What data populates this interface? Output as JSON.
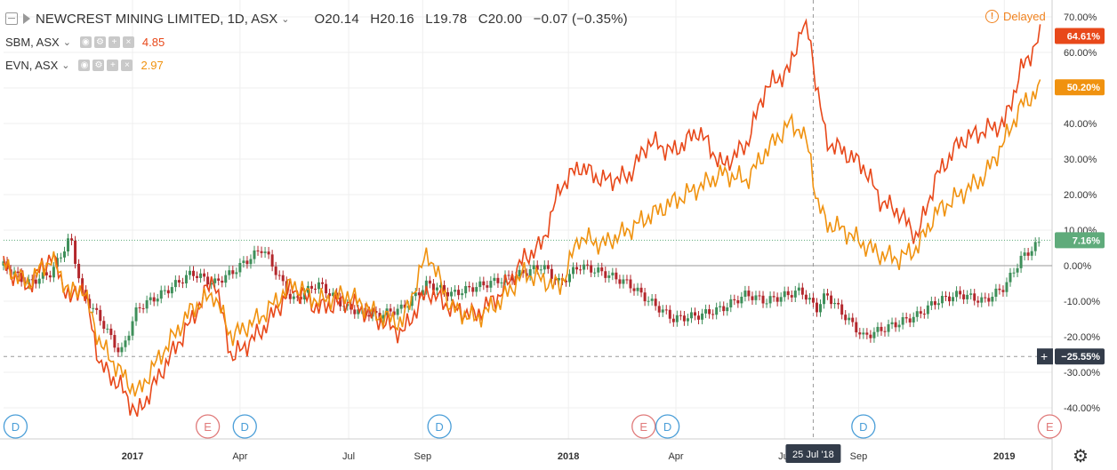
{
  "legend": {
    "main": {
      "title": "NEWCREST MINING LIMITED, 1D, ASX",
      "open": "O20.14",
      "high": "H20.16",
      "low": "L19.78",
      "close": "C20.00",
      "change": "−0.07 (−0.35%)"
    },
    "compare": [
      {
        "label": "SBM, ASX",
        "value": "4.85",
        "color": "#e8481a"
      },
      {
        "label": "EVN, ASX",
        "value": "2.97",
        "color": "#f0920f"
      }
    ]
  },
  "delayed_label": "Delayed",
  "crosshair_date": "25 Jul '18",
  "price_tags": {
    "sbm": "64.61%",
    "evn": "50.20%",
    "ncm": "7.16%",
    "cursor": "−25.55%"
  },
  "colors": {
    "sbm": "#e8481a",
    "evn": "#f0920f",
    "up": "#3e8f5a",
    "down": "#b3272c",
    "tag_main": "#5fab7b",
    "tag_cursor": "#333c4a"
  },
  "icons": [
    "collapse-icon",
    "flag-icon",
    "chevron-down-icon",
    "eye-icon",
    "gear-icon",
    "plus-icon",
    "close-icon",
    "warning-icon",
    "settings-gear-icon"
  ],
  "event_markers": [
    {
      "letter": "D",
      "type": "dividend"
    },
    {
      "letter": "E",
      "type": "earnings"
    },
    {
      "letter": "D",
      "type": "dividend"
    },
    {
      "letter": "D",
      "type": "dividend"
    },
    {
      "letter": "E",
      "type": "earnings"
    },
    {
      "letter": "D",
      "type": "dividend"
    },
    {
      "letter": "D",
      "type": "dividend"
    },
    {
      "letter": "E",
      "type": "earnings"
    }
  ],
  "chart_data": {
    "type": "line",
    "ylim": [
      -45,
      72
    ],
    "y_ticks": [
      "70.00%",
      "60.00%",
      "50.00%",
      "40.00%",
      "30.00%",
      "20.00%",
      "10.00%",
      "0.00%",
      "-10.00%",
      "-20.00%",
      "-30.00%",
      "-40.00%"
    ],
    "y_tick_values": [
      70,
      60,
      50,
      40,
      30,
      20,
      10,
      0,
      -10,
      -20,
      -30,
      -40
    ],
    "x_ticks": [
      "2017",
      "Apr",
      "Jul",
      "Sep",
      "2018",
      "Apr",
      "Jul",
      "Sep",
      "2019"
    ],
    "x_tick_dates": [
      "2017-01-01",
      "2017-04-01",
      "2017-07-01",
      "2017-09-01",
      "2018-01-01",
      "2018-04-01",
      "2018-07-01",
      "2018-09-01",
      "2019-01-01"
    ],
    "x_range": [
      "2016-09-15",
      "2019-02-10"
    ],
    "series": [
      {
        "name": "SBM, ASX",
        "x": [
          "2016-09-15",
          "2016-10-05",
          "2016-10-25",
          "2016-11-10",
          "2016-11-20",
          "2016-12-05",
          "2016-12-22",
          "2017-01-05",
          "2017-01-25",
          "2017-02-20",
          "2017-03-10",
          "2017-03-25",
          "2017-04-20",
          "2017-05-15",
          "2017-06-05",
          "2017-06-30",
          "2017-07-25",
          "2017-08-15",
          "2017-09-05",
          "2017-09-25",
          "2017-10-15",
          "2017-11-05",
          "2017-11-25",
          "2017-12-10",
          "2017-12-25",
          "2018-01-10",
          "2018-01-30",
          "2018-02-20",
          "2018-03-10",
          "2018-03-30",
          "2018-04-20",
          "2018-05-10",
          "2018-05-30",
          "2018-06-15",
          "2018-07-05",
          "2018-07-15",
          "2018-07-22",
          "2018-07-28",
          "2018-08-05",
          "2018-08-20",
          "2018-09-05",
          "2018-09-20",
          "2018-10-05",
          "2018-10-20",
          "2018-11-05",
          "2018-11-25",
          "2018-12-15",
          "2019-01-01",
          "2019-01-15",
          "2019-02-01"
        ],
        "values": [
          0,
          -6,
          3,
          -10,
          -5,
          -28,
          -34,
          -42,
          -30,
          -15,
          -3,
          -26,
          -18,
          -6,
          -12,
          -10,
          -15,
          -19,
          -7,
          -12,
          -14,
          -8,
          2,
          6,
          22,
          28,
          24,
          25,
          35,
          32,
          38,
          28,
          34,
          50,
          55,
          67,
          65,
          50,
          35,
          32,
          28,
          18,
          15,
          8,
          25,
          35,
          38,
          40,
          55,
          65
        ]
      },
      {
        "name": "EVN, ASX",
        "x": [
          "2016-09-15",
          "2016-10-05",
          "2016-10-25",
          "2016-11-10",
          "2016-11-20",
          "2016-12-05",
          "2016-12-22",
          "2017-01-05",
          "2017-01-25",
          "2017-02-20",
          "2017-03-10",
          "2017-03-25",
          "2017-04-20",
          "2017-05-15",
          "2017-06-05",
          "2017-06-30",
          "2017-07-25",
          "2017-08-15",
          "2017-09-05",
          "2017-09-25",
          "2017-10-15",
          "2017-11-05",
          "2017-11-25",
          "2017-12-10",
          "2017-12-25",
          "2018-01-10",
          "2018-01-30",
          "2018-02-20",
          "2018-03-10",
          "2018-03-30",
          "2018-04-20",
          "2018-05-10",
          "2018-05-30",
          "2018-06-15",
          "2018-07-05",
          "2018-07-15",
          "2018-07-22",
          "2018-07-28",
          "2018-08-05",
          "2018-08-20",
          "2018-09-05",
          "2018-09-20",
          "2018-10-05",
          "2018-10-20",
          "2018-11-05",
          "2018-11-25",
          "2018-12-15",
          "2019-01-01",
          "2019-01-15",
          "2019-02-01"
        ],
        "values": [
          0,
          -5,
          2,
          -8,
          -6,
          -22,
          -30,
          -36,
          -25,
          -12,
          -8,
          -20,
          -14,
          -5,
          -10,
          -8,
          -14,
          -16,
          4,
          -12,
          -15,
          -10,
          -2,
          -4,
          -6,
          8,
          6,
          10,
          14,
          18,
          22,
          26,
          24,
          32,
          40,
          38,
          32,
          18,
          12,
          10,
          6,
          3,
          2,
          5,
          15,
          20,
          25,
          35,
          45,
          50
        ]
      },
      {
        "name": "NEWCREST MINING LIMITED",
        "x": [
          "2016-09-15",
          "2016-10-05",
          "2016-10-25",
          "2016-11-10",
          "2016-11-20",
          "2016-12-05",
          "2016-12-22",
          "2017-01-05",
          "2017-01-25",
          "2017-02-20",
          "2017-03-10",
          "2017-03-25",
          "2017-04-20",
          "2017-05-15",
          "2017-06-05",
          "2017-06-30",
          "2017-07-25",
          "2017-08-15",
          "2017-09-05",
          "2017-09-25",
          "2017-10-15",
          "2017-11-05",
          "2017-11-25",
          "2017-12-10",
          "2017-12-25",
          "2018-01-10",
          "2018-01-30",
          "2018-02-20",
          "2018-03-10",
          "2018-03-30",
          "2018-04-20",
          "2018-05-10",
          "2018-05-30",
          "2018-06-15",
          "2018-07-05",
          "2018-07-15",
          "2018-07-22",
          "2018-07-28",
          "2018-08-05",
          "2018-08-20",
          "2018-09-05",
          "2018-09-20",
          "2018-10-05",
          "2018-10-20",
          "2018-11-05",
          "2018-11-25",
          "2018-12-15",
          "2019-01-01",
          "2019-01-15",
          "2019-02-01"
        ],
        "values": [
          0,
          -5,
          -2,
          8,
          -8,
          -15,
          -25,
          -12,
          -8,
          -2,
          -5,
          -2,
          5,
          -10,
          -5,
          -12,
          -14,
          -12,
          -5,
          -8,
          -6,
          -4,
          -2,
          0,
          -5,
          0,
          -2,
          -5,
          -10,
          -15,
          -14,
          -12,
          -8,
          -10,
          -8,
          -7,
          -10,
          -12,
          -8,
          -14,
          -20,
          -18,
          -16,
          -14,
          -10,
          -8,
          -10,
          -6,
          2,
          7
        ]
      }
    ]
  }
}
